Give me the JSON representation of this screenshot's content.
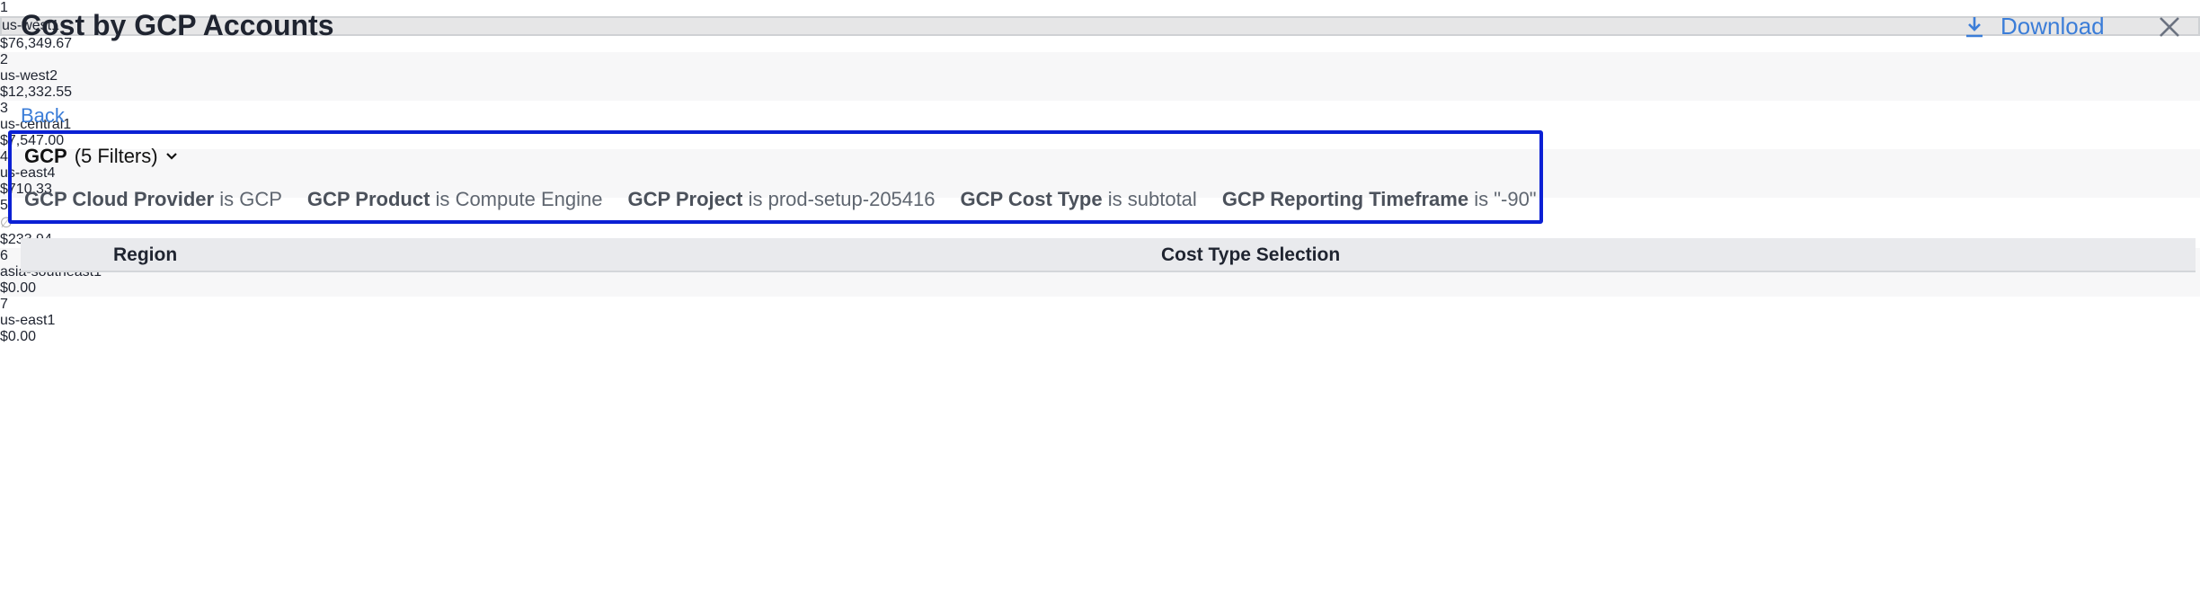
{
  "header": {
    "title": "Cost by GCP Accounts",
    "download": "Download"
  },
  "back": "Back",
  "filters": {
    "title": "GCP",
    "count": "(5 Filters)",
    "items": [
      {
        "field": "GCP Cloud Provider",
        "operator": "is",
        "value": "GCP"
      },
      {
        "field": "GCP Product",
        "operator": "is",
        "value": "Compute Engine"
      },
      {
        "field": "GCP Project",
        "operator": "is",
        "value": "prod-setup-205416"
      },
      {
        "field": "GCP Cost Type",
        "operator": "is",
        "value": "subtotal"
      },
      {
        "field": "GCP Reporting Timeframe",
        "operator": "is",
        "value": "\"-90\""
      }
    ]
  },
  "table": {
    "columns": [
      "Region",
      "Cost Type Selection"
    ],
    "row_numbers": [
      1,
      2,
      3,
      4,
      5,
      6,
      7
    ],
    "regions": [
      "us-west1",
      "us-west2",
      "us-central1",
      "us-east4",
      "∅",
      "asia-southeast1",
      "us-east1"
    ],
    "costs": [
      76349.67,
      12332.55,
      7547.0,
      710.33,
      233.94,
      0.0,
      0.0
    ],
    "cost_labels": [
      "$76,349.67",
      "$12,332.55",
      "$7,547.00",
      "$710.33",
      "$233.94",
      "$0.00",
      "$0.00"
    ]
  }
}
